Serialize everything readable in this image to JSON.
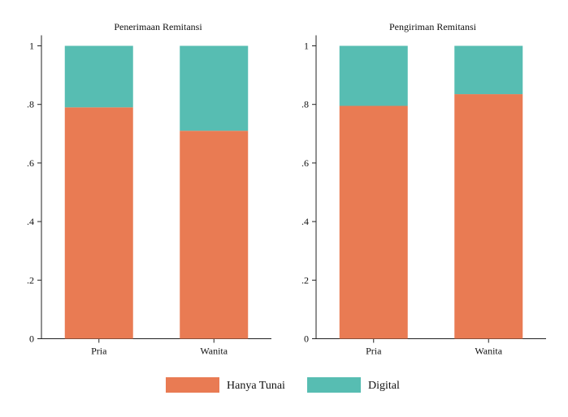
{
  "colors": {
    "cash": "#E97B53",
    "digital": "#57BDB2"
  },
  "legend": {
    "items": [
      {
        "label": "Hanya Tunai",
        "color_key": "cash"
      },
      {
        "label": "Digital",
        "color_key": "digital"
      }
    ]
  },
  "chart_data": [
    {
      "type": "bar",
      "stacked": true,
      "title": "Penerimaan Remitansi",
      "categories": [
        "Pria",
        "Wanita"
      ],
      "series": [
        {
          "name": "Hanya Tunai",
          "values": [
            0.79,
            0.71
          ]
        },
        {
          "name": "Digital",
          "values": [
            0.21,
            0.29
          ]
        }
      ],
      "ylim": [
        0,
        1
      ],
      "yticks": [
        0,
        0.2,
        0.4,
        0.6,
        0.8,
        1
      ],
      "ytick_labels": [
        "0",
        ".2",
        ".4",
        ".6",
        ".8",
        "1"
      ],
      "grid": false,
      "legend_position": "bottom-center"
    },
    {
      "type": "bar",
      "stacked": true,
      "title": "Pengiriman Remitansi",
      "categories": [
        "Pria",
        "Wanita"
      ],
      "series": [
        {
          "name": "Hanya Tunai",
          "values": [
            0.795,
            0.835
          ]
        },
        {
          "name": "Digital",
          "values": [
            0.205,
            0.165
          ]
        }
      ],
      "ylim": [
        0,
        1
      ],
      "yticks": [
        0,
        0.2,
        0.4,
        0.6,
        0.8,
        1
      ],
      "ytick_labels": [
        "0",
        ".2",
        ".4",
        ".6",
        ".8",
        "1"
      ],
      "grid": false,
      "legend_position": "bottom-center"
    }
  ]
}
